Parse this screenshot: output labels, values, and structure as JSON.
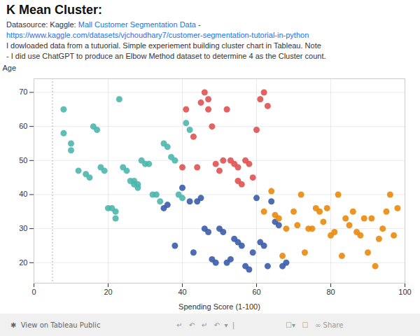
{
  "chart_data": {
    "type": "scatter",
    "title": "K Mean Cluster:",
    "title_color": "#111111",
    "annotations": [
      [
        {
          "text": "Datasource: Kaggle: ",
          "color": "#333333"
        },
        {
          "text": "Mall Customer Segmentation Data",
          "color": "#1a73e8"
        },
        {
          "text": " -",
          "color": "#333333"
        }
      ],
      [
        {
          "text": "https://www.kaggle.com/datasets/vjchoudhary7/customer-segmentation-tutorial-in-python",
          "color": "#1a73e8"
        }
      ],
      [
        {
          "text": "I dowloaded data from a tutuorial. Simple experiement building cluster chart in Tableau. Note",
          "color": "#333333"
        }
      ],
      [
        {
          "text": "- I did use ChatGPT to produce an Elbow Method dataset to determine 4 as the Cluster count.",
          "color": "#333333"
        }
      ]
    ],
    "caption": [
      {
        "text": "✱  View on Tableau Public",
        "color": "#666666"
      },
      {
        "text": "↵   ↶   ↵   ↶  ▾  |",
        "color": "#999999"
      },
      {
        "text": "☐▾   ☐   ∞ Share",
        "color": "#999999"
      }
    ],
    "xlabel": "Spending Score (1-100)",
    "ylabel": "Age",
    "xlim": [
      0,
      100
    ],
    "ylim": [
      14,
      74
    ],
    "xticks": [
      0,
      20,
      40,
      60,
      80,
      100
    ],
    "yticks": [
      20,
      30,
      40,
      50,
      60,
      70
    ],
    "grid": true,
    "vline": {
      "x": 5,
      "color": "#aaaaaa",
      "line_style": "dotted"
    },
    "series": [
      {
        "color": "#4db6ac",
        "marker": "circle",
        "x": [
          8,
          8,
          10,
          10,
          12,
          14,
          15,
          16,
          17,
          18,
          19,
          20,
          21,
          22,
          22,
          23,
          24,
          25,
          26,
          27,
          27,
          28,
          28,
          29,
          30,
          31,
          32,
          33,
          34,
          35,
          36,
          37,
          38,
          39,
          40,
          41,
          42
        ],
        "values": [
          65,
          58,
          55,
          53,
          47,
          46,
          45,
          60,
          59,
          48,
          47,
          36,
          36,
          35,
          33,
          68,
          48,
          47,
          44,
          44,
          43,
          43,
          42,
          50,
          49,
          49,
          40,
          40,
          38,
          55,
          54,
          51,
          50,
          40,
          39,
          61,
          59
        ]
      },
      {
        "color": "#e05252",
        "marker": "circle",
        "x": [
          40,
          41,
          43,
          44,
          45,
          46,
          47,
          47,
          48,
          49,
          50,
          51,
          52,
          53,
          54,
          55,
          55,
          56,
          57,
          58,
          59,
          60,
          61,
          62,
          63
        ],
        "values": [
          48,
          65,
          57,
          48,
          67,
          70,
          68,
          65,
          60,
          49,
          47,
          50,
          65,
          50,
          49,
          48,
          44,
          43,
          50,
          49,
          45,
          59,
          68,
          70,
          66
        ]
      },
      {
        "color": "#3a5ca8",
        "marker": "circle",
        "x": [
          35,
          36,
          38,
          40,
          42,
          43,
          44,
          45,
          46,
          47,
          48,
          49,
          50,
          51,
          52,
          53,
          54,
          55,
          56,
          57,
          58,
          59,
          60,
          61,
          62,
          63,
          64,
          65,
          66,
          67,
          68
        ],
        "values": [
          36,
          37,
          25,
          42,
          38,
          23,
          38,
          39,
          30,
          29,
          21,
          20,
          30,
          29,
          20,
          21,
          27,
          26,
          25,
          19,
          18,
          23,
          39,
          26,
          25,
          19,
          38,
          32,
          31,
          19,
          20
        ]
      },
      {
        "color": "#e8890c",
        "marker": "circle",
        "x": [
          62,
          64,
          65,
          66,
          67,
          68,
          70,
          71,
          72,
          73,
          74,
          75,
          76,
          77,
          78,
          79,
          80,
          81,
          82,
          83,
          84,
          85,
          86,
          87,
          88,
          89,
          90,
          91,
          92,
          93,
          94,
          95,
          96,
          97,
          98
        ],
        "values": [
          35,
          41,
          34,
          33,
          22,
          30,
          35,
          31,
          40,
          23,
          30,
          30,
          36,
          35,
          32,
          36,
          28,
          29,
          40,
          22,
          33,
          31,
          35,
          29,
          28,
          33,
          23,
          33,
          19,
          27,
          30,
          35,
          40,
          28,
          36
        ]
      }
    ]
  }
}
